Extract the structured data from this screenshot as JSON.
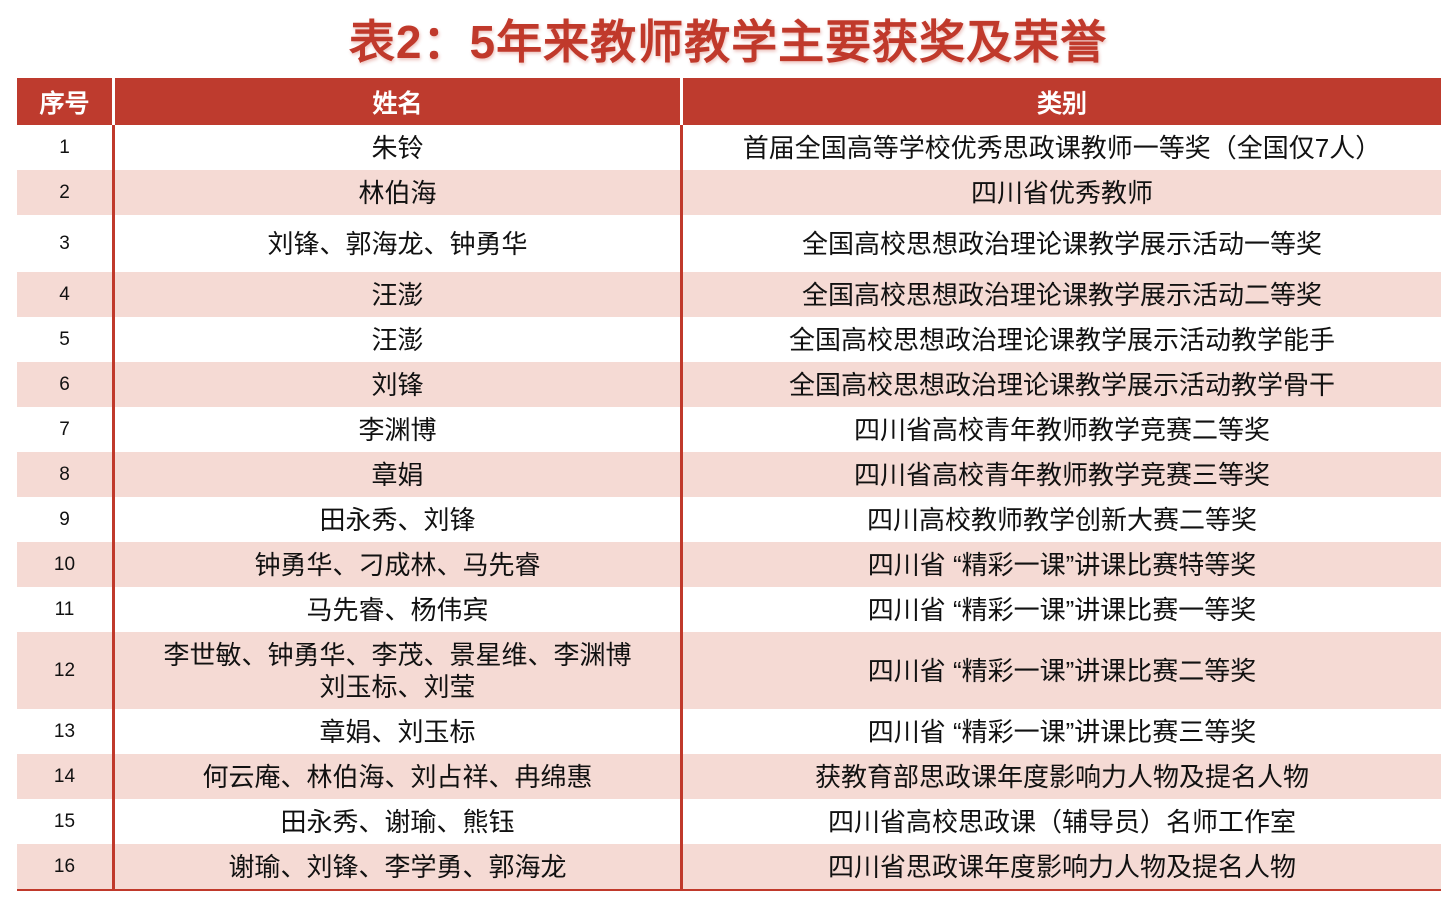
{
  "title": "表2：5年来教师教学主要获奖及荣誉",
  "table": {
    "headers": [
      "序号",
      "姓名",
      "类别"
    ],
    "rows": [
      {
        "no": "1",
        "name": "朱铃",
        "category": "首届全国高等学校优秀思政课教师一等奖（全国仅7人）"
      },
      {
        "no": "2",
        "name": "林伯海",
        "category": "四川省优秀教师"
      },
      {
        "no": "3",
        "name": "刘锋、郭海龙、钟勇华",
        "category": "全国高校思想政治理论课教学展示活动一等奖"
      },
      {
        "no": "4",
        "name": "汪澎",
        "category": "全国高校思想政治理论课教学展示活动二等奖"
      },
      {
        "no": "5",
        "name": "汪澎",
        "category": "全国高校思想政治理论课教学展示活动教学能手"
      },
      {
        "no": "6",
        "name": "刘锋",
        "category": "全国高校思想政治理论课教学展示活动教学骨干"
      },
      {
        "no": "7",
        "name": "李渊博",
        "category": "四川省高校青年教师教学竞赛二等奖"
      },
      {
        "no": "8",
        "name": "章娟",
        "category": "四川省高校青年教师教学竞赛三等奖"
      },
      {
        "no": "9",
        "name": "田永秀、刘锋",
        "category": "四川高校教师教学创新大赛二等奖"
      },
      {
        "no": "10",
        "name": "钟勇华、刁成林、马先睿",
        "category": "四川省 “精彩一课”讲课比赛特等奖"
      },
      {
        "no": "11",
        "name": "马先睿、杨伟宾",
        "category": "四川省 “精彩一课”讲课比赛一等奖"
      },
      {
        "no": "12",
        "name": "李世敏、钟勇华、李茂、景星维、李渊博",
        "name2": "刘玉标、刘莹",
        "category": "四川省 “精彩一课”讲课比赛二等奖"
      },
      {
        "no": "13",
        "name": "章娟、刘玉标",
        "category": "四川省 “精彩一课”讲课比赛三等奖"
      },
      {
        "no": "14",
        "name": "何云庵、林伯海、刘占祥、冉绵惠",
        "category": "获教育部思政课年度影响力人物及提名人物"
      },
      {
        "no": "15",
        "name": "田永秀、谢瑜、熊钰",
        "category": "四川省高校思政课（辅导员）名师工作室"
      },
      {
        "no": "16",
        "name": "谢瑜、刘锋、李学勇、郭海龙",
        "category": "四川省思政课年度影响力人物及提名人物"
      }
    ]
  },
  "colors": {
    "accent": "#be3b2e",
    "stripe": "#f5dad4"
  }
}
